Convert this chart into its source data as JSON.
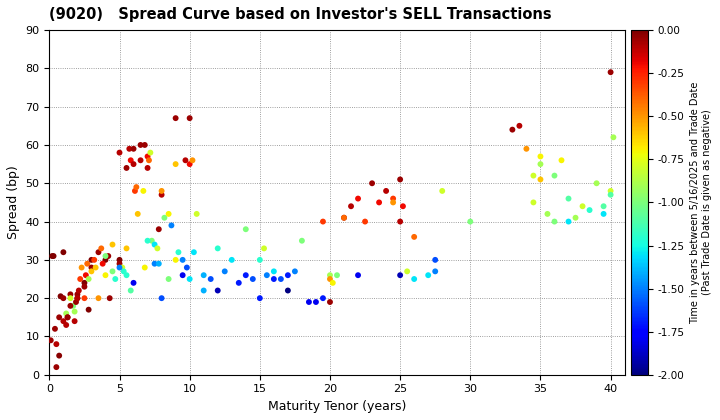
{
  "title": "(9020)   Spread Curve based on Investor's SELL Transactions",
  "xlabel": "Maturity Tenor (years)",
  "ylabel": "Spread (bp)",
  "colorbar_label_line1": "Time in years between 5/16/2025 and Trade Date",
  "colorbar_label_line2": "(Past Trade Date is given as negative)",
  "xlim": [
    0,
    41
  ],
  "ylim": [
    0,
    90
  ],
  "xticks": [
    0,
    5,
    10,
    15,
    20,
    25,
    30,
    35,
    40
  ],
  "yticks": [
    0,
    10,
    20,
    30,
    40,
    50,
    60,
    70,
    80,
    90
  ],
  "cmap": "jet",
  "vmin": -2.0,
  "vmax": 0.0,
  "marker_size": 18,
  "background_color": "#ffffff",
  "scatter_x": [
    0.1,
    0.3,
    0.5,
    0.7,
    0.8,
    1.0,
    1.0,
    1.2,
    1.3,
    1.5,
    1.5,
    1.7,
    1.8,
    1.9,
    2.0,
    2.0,
    2.1,
    2.2,
    2.3,
    2.5,
    2.5,
    2.6,
    2.7,
    2.8,
    3.0,
    3.0,
    3.2,
    3.3,
    3.5,
    3.7,
    4.0,
    4.0,
    4.2,
    4.5,
    4.5,
    4.7,
    5.0,
    5.0,
    5.0,
    5.2,
    5.3,
    5.5,
    5.5,
    5.7,
    5.8,
    6.0,
    6.0,
    6.1,
    6.2,
    6.3,
    6.5,
    6.5,
    6.7,
    6.8,
    7.0,
    7.0,
    7.1,
    7.2,
    7.3,
    7.5,
    7.7,
    7.8,
    8.0,
    8.0,
    8.2,
    8.5,
    8.7,
    9.0,
    9.0,
    9.2,
    9.5,
    9.7,
    10.0,
    10.0,
    10.2,
    10.3,
    10.5,
    11.0,
    11.5,
    12.0,
    12.5,
    13.0,
    13.5,
    14.0,
    14.5,
    15.0,
    15.3,
    15.5,
    16.0,
    16.5,
    17.0,
    17.5,
    18.0,
    18.5,
    19.0,
    19.5,
    20.0,
    20.0,
    20.2,
    20.5,
    21.0,
    21.5,
    22.0,
    22.5,
    23.0,
    23.5,
    24.0,
    24.5,
    25.0,
    25.0,
    25.2,
    25.5,
    26.0,
    27.0,
    27.5,
    28.0,
    30.0,
    33.0,
    33.5,
    34.0,
    34.5,
    35.0,
    35.0,
    35.5,
    36.0,
    36.5,
    37.0,
    37.5,
    38.0,
    38.5,
    39.0,
    39.5,
    40.0,
    40.0,
    40.2,
    1.0,
    1.3,
    2.0,
    2.5,
    3.0,
    4.0,
    5.0,
    6.0,
    7.0,
    8.0,
    9.0,
    10.0,
    15.0,
    20.0,
    25.0,
    35.0,
    40.0,
    0.5,
    1.5,
    3.5,
    5.5,
    7.5,
    9.5,
    12.0,
    17.0,
    22.0,
    27.5,
    37.0,
    0.2,
    0.7,
    1.2,
    2.8,
    4.3,
    6.8,
    8.5,
    11.0,
    14.0,
    19.5,
    24.5,
    34.5,
    39.5,
    0.4,
    1.8,
    3.8,
    5.8,
    7.8,
    9.8,
    16.0,
    21.0,
    26.0,
    36.0
  ],
  "scatter_y": [
    9.0,
    31.0,
    8.0,
    5.0,
    20.5,
    20.0,
    14.0,
    16.0,
    15.0,
    21.0,
    20.0,
    18.0,
    16.5,
    19.0,
    20.0,
    21.0,
    22.0,
    25.0,
    28.0,
    24.0,
    23.0,
    26.0,
    29.0,
    25.0,
    30.0,
    28.0,
    30.0,
    28.0,
    32.0,
    33.0,
    30.0,
    26.0,
    31.0,
    27.0,
    34.0,
    25.0,
    30.0,
    29.0,
    58.0,
    28.0,
    27.0,
    33.0,
    54.0,
    59.0,
    56.0,
    55.0,
    59.0,
    48.0,
    49.0,
    42.0,
    60.0,
    56.0,
    48.0,
    60.0,
    54.0,
    57.0,
    56.0,
    58.0,
    35.0,
    34.0,
    33.0,
    38.0,
    47.0,
    48.0,
    41.0,
    42.0,
    39.0,
    55.0,
    67.0,
    32.0,
    30.0,
    56.0,
    67.0,
    55.0,
    56.0,
    32.0,
    42.0,
    26.0,
    25.0,
    33.0,
    27.0,
    30.0,
    24.0,
    38.0,
    25.0,
    30.0,
    33.0,
    26.0,
    27.0,
    25.0,
    26.0,
    27.0,
    35.0,
    19.0,
    19.0,
    20.0,
    26.0,
    25.0,
    24.0,
    26.0,
    41.0,
    44.0,
    46.0,
    40.0,
    50.0,
    45.0,
    48.0,
    46.0,
    51.0,
    40.0,
    44.0,
    27.0,
    36.0,
    26.0,
    27.0,
    48.0,
    40.0,
    64.0,
    65.0,
    59.0,
    52.0,
    57.0,
    51.0,
    42.0,
    52.0,
    56.0,
    46.0,
    41.0,
    44.0,
    43.0,
    50.0,
    42.0,
    79.0,
    48.0,
    62.0,
    32.0,
    15.0,
    20.0,
    20.0,
    27.0,
    31.0,
    28.0,
    24.0,
    35.0,
    20.0,
    30.0,
    25.0,
    20.0,
    19.0,
    26.0,
    55.0,
    47.0,
    2.0,
    18.0,
    20.0,
    26.0,
    29.0,
    26.0,
    22.0,
    22.0,
    26.0,
    30.0,
    40.0,
    31.0,
    15.0,
    13.0,
    17.0,
    20.0,
    28.0,
    25.0,
    22.0,
    26.0,
    40.0,
    45.0,
    45.0,
    44.0,
    12.0,
    14.0,
    29.0,
    22.0,
    29.0,
    28.0,
    25.0,
    41.0,
    25.0,
    40.0
  ],
  "scatter_c": [
    -0.05,
    0.0,
    -0.1,
    -0.02,
    0.0,
    -0.05,
    -0.1,
    -0.9,
    -0.05,
    -0.05,
    -0.8,
    -1.0,
    -0.9,
    -0.05,
    0.0,
    -0.05,
    -0.1,
    -0.3,
    -0.5,
    0.0,
    -0.05,
    -0.2,
    -0.4,
    -0.9,
    0.0,
    -0.05,
    -0.3,
    -0.6,
    -0.05,
    -0.4,
    0.0,
    -0.7,
    -0.05,
    -1.0,
    -0.6,
    -1.2,
    0.0,
    -0.05,
    -0.1,
    -0.8,
    -1.2,
    -0.6,
    -0.05,
    -0.1,
    -0.2,
    -0.1,
    -0.05,
    -0.3,
    -0.4,
    -0.6,
    -0.05,
    -0.1,
    -0.7,
    -0.05,
    -0.1,
    -0.2,
    -0.4,
    -0.8,
    -1.0,
    -1.3,
    -0.8,
    -0.05,
    -0.1,
    -0.5,
    -1.0,
    -0.7,
    -1.5,
    -0.6,
    -0.05,
    -1.2,
    -1.5,
    -0.1,
    -0.05,
    -0.2,
    -0.5,
    -1.3,
    -0.8,
    -1.4,
    -1.6,
    -1.2,
    -1.5,
    -1.3,
    -1.7,
    -1.0,
    -1.6,
    -1.2,
    -0.8,
    -1.5,
    -1.3,
    -1.6,
    -1.7,
    -1.5,
    -1.0,
    -1.8,
    -1.8,
    -1.7,
    -0.9,
    -0.5,
    -0.7,
    -1.0,
    -0.05,
    -0.1,
    -0.2,
    -0.3,
    -0.05,
    -0.2,
    -0.1,
    -0.3,
    -0.05,
    -0.1,
    -0.2,
    -0.8,
    -0.4,
    -1.3,
    -1.5,
    -0.8,
    -1.0,
    -0.05,
    -0.1,
    -0.5,
    -0.8,
    -0.7,
    -0.6,
    -0.9,
    -1.0,
    -0.7,
    -1.1,
    -0.9,
    -0.8,
    -1.2,
    -0.9,
    -1.3,
    -0.05,
    -0.8,
    -0.9,
    0.0,
    -0.05,
    -0.1,
    -0.3,
    -0.6,
    -1.0,
    -1.5,
    -1.8,
    -1.2,
    -1.6,
    -0.7,
    -1.3,
    -1.7,
    -0.05,
    -1.9,
    -0.9,
    -1.1,
    -0.05,
    -0.05,
    -0.5,
    -1.2,
    -1.5,
    -1.8,
    -1.9,
    -2.0,
    -1.8,
    -1.6,
    -1.3,
    0.0,
    -0.05,
    -0.1,
    0.0,
    -0.05,
    -0.7,
    -1.0,
    -1.4,
    -1.7,
    -0.3,
    -0.5,
    -0.8,
    -1.1,
    -0.05,
    -0.1,
    -0.2,
    -1.1,
    -1.4,
    -1.6,
    -1.7,
    -0.4,
    -1.3,
    -1.0
  ]
}
